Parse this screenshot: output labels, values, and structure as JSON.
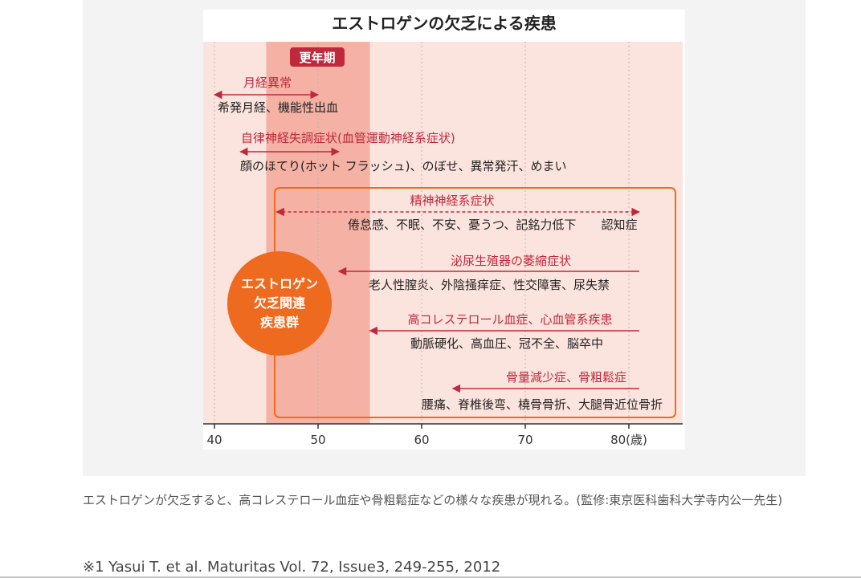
{
  "diagram": {
    "title": "エストロゲンの欠乏による疾患",
    "menopause_label": "更年期",
    "axis": {
      "ticks": [
        "40",
        "50",
        "60",
        "70",
        "80(歳)"
      ],
      "tick_values": [
        40,
        50,
        60,
        70,
        80
      ],
      "range": [
        40,
        85
      ]
    },
    "menopause_range": [
      45,
      55
    ],
    "circle_lines": [
      "エストロゲン",
      "欠乏関連",
      "疾患群"
    ],
    "conditions": [
      {
        "title": "月経異常",
        "description": "希発月経、機能性出血",
        "arrow": "both",
        "from": 40,
        "to": 50
      },
      {
        "title": "自律神経失調症状(血管運動神経系症状)",
        "description": "顔のほてり(ホット フラッシュ)、のぼせ、異常発汗、めまい",
        "arrow": "both",
        "from": 42.5,
        "to": 52
      },
      {
        "title": "精神神経系症状",
        "description": "倦怠感、不眠、不安、憂うつ、記銘力低下",
        "extra": "認知症",
        "arrow": "both-dashed",
        "from": 46,
        "to": 81
      },
      {
        "title": "泌尿生殖器の萎縮症状",
        "description": "老人性膣炎、外陰掻痒症、性交障害、尿失禁",
        "arrow": "left",
        "from": 52,
        "to": 81
      },
      {
        "title": "高コレステロール血症、心血管系疾患",
        "description": "動脈硬化、高血圧、冠不全、脳卒中",
        "arrow": "left",
        "from": 55,
        "to": 81
      },
      {
        "title": "骨量減少症、骨粗鬆症",
        "description": "腰痛、脊椎後弯、橈骨骨折、大腿骨近位骨折",
        "arrow": "left",
        "from": 63,
        "to": 81
      }
    ]
  },
  "caption": "エストロゲンが欠乏すると、高コレステロール血症や骨粗鬆症などの様々な疾患が現れる。(監修:東京医科歯科大学寺内公一先生)",
  "footnote": "※1 Yasui T. et al. Maturitas Vol. 72, Issue3, 249-255, 2012",
  "colors": {
    "chart_bg": "#fce4de",
    "menopause_band": "#f4b1a4",
    "accent_red": "#c0283c",
    "orange": "#ee6a1f",
    "title_color": "#222222"
  }
}
